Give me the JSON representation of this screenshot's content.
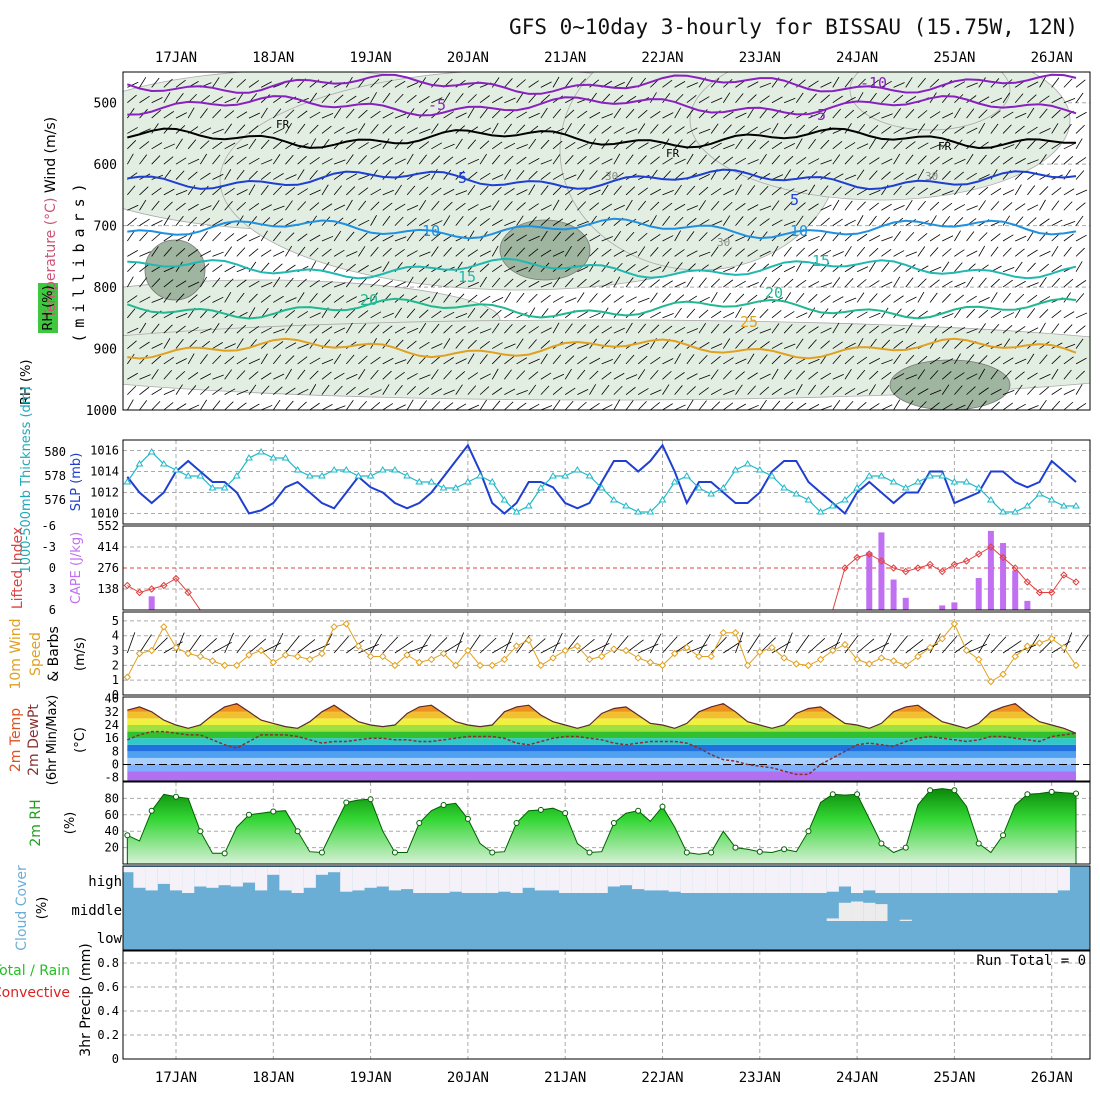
{
  "title": "GFS 0~10day 3-hourly for BISSAU (15.75W, 12N)",
  "days": [
    "17JAN",
    "18JAN",
    "19JAN",
    "20JAN",
    "21JAN",
    "22JAN",
    "23JAN",
    "24JAN",
    "25JAN",
    "26JAN"
  ],
  "colors": {
    "grid": "#bdbdbd",
    "temperature_orange": "#e0a020",
    "slp": "#1f3fd0",
    "thickness": "#20b8c8",
    "lifted_index": "#e04040",
    "cape": "#c070f0",
    "wind_speed": "#e0a020",
    "cloud": "#6aaed6",
    "rh_fill": "#22c022",
    "precip_total": "#22c022",
    "precip_conv": "#e02020"
  },
  "panels": {
    "upper_air": {
      "ylabel_parts": [
        "Wind (m/s)",
        "Temperature (°C)",
        "RH (%)"
      ],
      "units": "(millibars)",
      "y_ticks": [
        "500",
        "600",
        "700",
        "800",
        "900",
        "1000"
      ],
      "isotherm_labels": [
        "-10",
        "-5",
        "-5",
        "FR",
        "FR",
        "FR",
        "5",
        "5",
        "10",
        "10",
        "15",
        "15",
        "20",
        "20",
        "25",
        "30",
        "30",
        "30"
      ]
    },
    "slp_thickness": {
      "left_label": "1000-500mb Thickness (dm)",
      "right_label": "SLP (mb)",
      "left_ticks": [
        "576",
        "578",
        "580"
      ],
      "right_ticks": [
        "1010",
        "1012",
        "1014",
        "1016"
      ]
    },
    "cape_li": {
      "left_label": "Lifted Index",
      "right_label": "CAPE (J/kg)",
      "li_ticks": [
        "-6",
        "-3",
        "0",
        "3",
        "6"
      ],
      "cape_ticks": [
        "138",
        "276",
        "414",
        "552"
      ]
    },
    "wind10": {
      "label_parts": [
        "10m Wind",
        "Speed",
        "& Barbs"
      ],
      "units": "(m/s)",
      "y_ticks": [
        "0",
        "1",
        "2",
        "3",
        "4",
        "5"
      ]
    },
    "temp2m": {
      "label_parts": [
        "2m Temp",
        "2m DewPt",
        "(6hr Min/Max)"
      ],
      "units": "(°C)",
      "y_ticks": [
        "-8",
        "0",
        "8",
        "16",
        "24",
        "32",
        "40"
      ]
    },
    "rh2m": {
      "label": "2m RH",
      "units": "(%)",
      "y_ticks": [
        "20",
        "40",
        "60",
        "80"
      ]
    },
    "cloud": {
      "label": "Cloud Cover",
      "units": "(%)",
      "levels": [
        "high",
        "middle",
        "low"
      ]
    },
    "precip": {
      "label_total": "Total / Rain",
      "label_conv": "Convective",
      "ylabel": "3hr Precip (mm)",
      "y_ticks": [
        "0",
        "0.2",
        "0.4",
        "0.6",
        "0.8"
      ],
      "run_total": "Run Total = 0"
    }
  },
  "chart_data": [
    {
      "type": "line",
      "title": "Sea level pressure and 1000-500mb thickness",
      "x": "3-hourly steps, 16JAN 12Z to 26JAN 06Z (79 steps)",
      "series": [
        {
          "name": "SLP (mb)",
          "values": [
            1013.5,
            1012.0,
            1011.0,
            1012.0,
            1014.0,
            1015.0,
            1014.0,
            1013.0,
            1013.0,
            1012.0,
            1010.0,
            1010.3,
            1011.0,
            1012.5,
            1013.0,
            1012.0,
            1011.0,
            1010.5,
            1012.0,
            1013.5,
            1012.5,
            1012.0,
            1011.0,
            1010.5,
            1011.0,
            1012.0,
            1013.5,
            1015.0,
            1016.5,
            1014.0,
            1011.0,
            1010.0,
            1011.0,
            1013.0,
            1013.0,
            1012.5,
            1011.0,
            1010.5,
            1011.0,
            1013.0,
            1015.0,
            1015.0,
            1014.0,
            1015.0,
            1016.5,
            1014.0,
            1011.0,
            1013.0,
            1013.0,
            1012.0,
            1011.0,
            1011.0,
            1012.0,
            1014.0,
            1015.0,
            1015.0,
            1013.0,
            1012.0,
            1011.0,
            1010.0,
            1012.0,
            1013.0,
            1012.0,
            1011.0,
            1012.0,
            1012.0,
            1014.0,
            1014.0,
            1011.0,
            1011.5,
            1012.0,
            1014.0,
            1014.0,
            1013.0,
            1012.5,
            1013.0,
            1015.0,
            1014.0,
            1013.0
          ]
        },
        {
          "name": "1000-500mb Thickness (dm)",
          "values": [
            577.5,
            579.0,
            580.0,
            579.0,
            578.5,
            578.0,
            578.0,
            577.0,
            577.0,
            578.0,
            579.5,
            580.0,
            579.5,
            579.5,
            578.5,
            578.0,
            578.0,
            578.5,
            578.5,
            578.0,
            578.0,
            578.5,
            578.5,
            578.0,
            577.5,
            577.5,
            577.0,
            577.0,
            577.5,
            578.0,
            577.5,
            576.0,
            575.0,
            575.5,
            577.0,
            578.0,
            578.0,
            578.5,
            578.0,
            577.0,
            576.0,
            575.5,
            575.0,
            575.0,
            576.0,
            577.5,
            578.0,
            577.0,
            576.5,
            577.0,
            578.5,
            579.0,
            578.5,
            578.0,
            577.0,
            576.5,
            576.0,
            575.0,
            575.5,
            576.0,
            577.0,
            578.0,
            578.0,
            577.5,
            577.0,
            577.5,
            578.0,
            578.0,
            577.5,
            577.5,
            577.0,
            576.0,
            575.0,
            575.0,
            575.5,
            576.5,
            576.0,
            575.5,
            575.5
          ]
        }
      ]
    },
    {
      "type": "bar",
      "title": "CAPE and Lifted Index",
      "x": "3-hourly steps, 16JAN 12Z to 26JAN 06Z",
      "series": [
        {
          "name": "CAPE (J/kg)",
          "values": [
            0,
            0,
            90,
            0,
            0,
            0,
            0,
            0,
            0,
            0,
            0,
            0,
            0,
            0,
            0,
            0,
            0,
            0,
            0,
            0,
            0,
            0,
            0,
            0,
            0,
            0,
            0,
            0,
            0,
            0,
            0,
            0,
            0,
            0,
            0,
            0,
            0,
            0,
            0,
            0,
            0,
            0,
            0,
            0,
            0,
            0,
            0,
            0,
            0,
            0,
            0,
            0,
            0,
            0,
            0,
            0,
            0,
            0,
            0,
            0,
            0,
            380,
            510,
            200,
            80,
            0,
            0,
            30,
            50,
            0,
            210,
            520,
            440,
            260,
            60,
            0,
            0,
            0,
            0
          ]
        },
        {
          "name": "Lifted Index",
          "values": [
            2.5,
            3.5,
            3.0,
            2.5,
            1.5,
            3.5,
            6.0,
            6.0,
            6.0,
            6.0,
            6.0,
            6.0,
            6.0,
            6.0,
            6.0,
            6.0,
            6.0,
            6.0,
            6.0,
            6.0,
            6.0,
            6.0,
            6.0,
            6.0,
            6.0,
            6.0,
            6.0,
            6.0,
            6.0,
            6.0,
            6.0,
            6.0,
            6.0,
            6.0,
            6.0,
            6.0,
            6.0,
            6.0,
            6.0,
            6.0,
            6.0,
            6.0,
            6.0,
            6.0,
            6.0,
            6.0,
            6.0,
            6.0,
            6.0,
            6.0,
            6.0,
            6.0,
            6.0,
            6.0,
            6.0,
            6.0,
            6.0,
            6.0,
            6.0,
            0.0,
            -1.5,
            -2.0,
            -1.0,
            0.0,
            0.5,
            0.0,
            -0.5,
            0.5,
            -0.5,
            -1.0,
            -2.0,
            -3.0,
            -1.5,
            0.0,
            2.0,
            3.5,
            3.5,
            1.0,
            2.0
          ]
        }
      ]
    },
    {
      "type": "line",
      "title": "10m wind speed",
      "x": "3-hourly steps, 16JAN 12Z to 26JAN 06Z",
      "series": [
        {
          "name": "10m Wind Speed (m/s)",
          "values": [
            1.2,
            2.8,
            3.0,
            4.6,
            3.2,
            2.8,
            2.6,
            2.3,
            2.0,
            2.0,
            2.7,
            3.0,
            2.2,
            2.7,
            2.6,
            2.4,
            2.8,
            4.6,
            4.8,
            3.3,
            2.6,
            2.6,
            2.0,
            2.7,
            2.2,
            2.4,
            2.8,
            2.0,
            3.0,
            2.0,
            2.0,
            2.4,
            3.3,
            3.7,
            2.0,
            2.5,
            3.0,
            3.3,
            2.4,
            2.6,
            3.1,
            3.0,
            2.5,
            2.2,
            2.0,
            2.8,
            3.2,
            2.6,
            2.6,
            4.2,
            4.2,
            2.0,
            2.9,
            3.2,
            2.5,
            2.1,
            2.0,
            2.4,
            3.0,
            3.4,
            2.4,
            2.1,
            2.5,
            2.3,
            2.0,
            2.6,
            3.2,
            3.8,
            4.8,
            3.0,
            2.4,
            0.9,
            1.4,
            2.6,
            3.3,
            3.5,
            3.8,
            3.2,
            2.0
          ]
        }
      ]
    },
    {
      "type": "line",
      "title": "2m temperature and dew point",
      "x": "3-hourly steps, 16JAN 12Z to 26JAN 06Z",
      "ylim": [
        -8,
        40
      ],
      "series": [
        {
          "name": "2m Temp (°C)",
          "values": [
            33,
            35,
            32,
            27,
            24,
            22,
            24,
            30,
            35,
            37,
            32,
            27,
            25,
            23,
            22,
            26,
            32,
            36,
            31,
            26,
            24,
            23,
            24,
            31,
            35,
            36,
            31,
            26,
            24,
            23,
            24,
            32,
            35,
            36,
            30,
            26,
            24,
            22,
            24,
            31,
            34,
            35,
            30,
            25,
            24,
            22,
            25,
            32,
            35,
            37,
            32,
            26,
            24,
            22,
            24,
            31,
            34,
            35,
            30,
            25,
            24,
            22,
            25,
            32,
            35,
            36,
            31,
            26,
            24,
            22,
            25,
            32,
            35,
            37,
            31,
            26,
            24,
            22,
            19
          ]
        },
        {
          "name": "2m DewPt (°C)",
          "values": [
            15,
            18,
            20,
            20,
            19,
            18,
            18,
            15,
            12,
            10,
            14,
            18,
            18,
            18,
            17,
            15,
            13,
            14,
            14,
            15,
            16,
            16,
            15,
            15,
            14,
            14,
            15,
            16,
            17,
            17,
            17,
            16,
            13,
            12,
            14,
            16,
            17,
            17,
            16,
            15,
            13,
            12,
            13,
            14,
            14,
            14,
            13,
            10,
            6,
            3,
            2,
            0,
            -1,
            -2,
            -4,
            -6,
            -6,
            0,
            4,
            8,
            12,
            13,
            12,
            11,
            14,
            16,
            17,
            16,
            15,
            14,
            15,
            17,
            17,
            16,
            15,
            14,
            17,
            18,
            19
          ]
        }
      ]
    },
    {
      "type": "area",
      "title": "2m relative humidity",
      "x": "3-hourly steps, 16JAN 12Z to 26JAN 06Z",
      "ylim": [
        0,
        100
      ],
      "series": [
        {
          "name": "2m RH (%)",
          "values": [
            35,
            28,
            65,
            85,
            82,
            80,
            40,
            13,
            13,
            45,
            60,
            62,
            64,
            65,
            40,
            15,
            14,
            45,
            75,
            78,
            79,
            40,
            14,
            14,
            50,
            65,
            72,
            74,
            55,
            25,
            14,
            15,
            50,
            65,
            66,
            68,
            62,
            25,
            14,
            15,
            50,
            62,
            65,
            52,
            70,
            45,
            14,
            12,
            14,
            40,
            20,
            18,
            15,
            14,
            18,
            15,
            40,
            75,
            85,
            84,
            85,
            55,
            25,
            14,
            20,
            72,
            90,
            92,
            90,
            70,
            25,
            14,
            35,
            72,
            85,
            86,
            88,
            87,
            86
          ]
        }
      ]
    },
    {
      "type": "bar",
      "title": "Cloud cover",
      "x": "3-hourly steps, 16JAN 12Z to 26JAN 06Z",
      "series": [
        {
          "name": "high (%)",
          "values": [
            80,
            20,
            10,
            35,
            10,
            0,
            25,
            20,
            30,
            25,
            40,
            10,
            70,
            10,
            0,
            20,
            70,
            80,
            5,
            10,
            20,
            25,
            10,
            15,
            0,
            0,
            0,
            5,
            0,
            0,
            0,
            5,
            0,
            20,
            10,
            10,
            0,
            0,
            0,
            0,
            25,
            30,
            15,
            10,
            10,
            5,
            0,
            0,
            0,
            0,
            0,
            0,
            0,
            0,
            0,
            0,
            0,
            0,
            5,
            25,
            0,
            10,
            0,
            0,
            0,
            0,
            0,
            0,
            0,
            0,
            0,
            0,
            0,
            0,
            0,
            0,
            0,
            10,
            100
          ]
        },
        {
          "name": "middle (%)",
          "values": [
            0,
            0,
            0,
            0,
            0,
            0,
            0,
            0,
            0,
            0,
            0,
            0,
            0,
            0,
            0,
            0,
            0,
            0,
            0,
            0,
            0,
            0,
            0,
            0,
            0,
            0,
            0,
            0,
            0,
            0,
            0,
            0,
            0,
            0,
            0,
            0,
            0,
            0,
            0,
            0,
            0,
            0,
            0,
            0,
            0,
            0,
            0,
            0,
            0,
            0,
            0,
            0,
            0,
            0,
            0,
            0,
            0,
            0,
            10,
            70,
            75,
            70,
            65,
            0,
            5,
            0,
            0,
            0,
            0,
            0,
            0,
            0,
            0,
            0,
            0,
            0,
            0,
            0,
            0
          ]
        }
      ]
    },
    {
      "type": "bar",
      "title": "3hr Precip",
      "x": "3-hourly steps, 16JAN 12Z to 26JAN 06Z",
      "ylim": [
        0,
        0.9
      ],
      "series": [
        {
          "name": "Total / Rain (mm)",
          "values": [
            0,
            0,
            0,
            0,
            0,
            0,
            0,
            0,
            0,
            0,
            0,
            0,
            0,
            0,
            0,
            0,
            0,
            0,
            0,
            0,
            0,
            0,
            0,
            0,
            0,
            0,
            0,
            0,
            0,
            0,
            0,
            0,
            0,
            0,
            0,
            0,
            0,
            0,
            0,
            0,
            0,
            0,
            0,
            0,
            0,
            0,
            0,
            0,
            0,
            0,
            0,
            0,
            0,
            0,
            0,
            0,
            0,
            0,
            0,
            0,
            0,
            0,
            0,
            0,
            0,
            0,
            0,
            0,
            0,
            0,
            0,
            0,
            0,
            0,
            0,
            0,
            0,
            0,
            0
          ]
        }
      ]
    }
  ]
}
